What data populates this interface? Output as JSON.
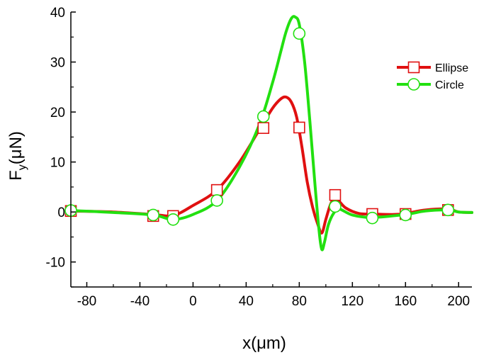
{
  "chart_data": {
    "type": "line",
    "xlabel": "x(μm)",
    "ylabel": {
      "main": "F",
      "sub": "y",
      "rest": "(μN)"
    },
    "xlim": [
      -92,
      210
    ],
    "ylim": [
      -15,
      40
    ],
    "xticks": [
      -80,
      -40,
      0,
      40,
      80,
      120,
      160,
      200
    ],
    "xtick_labels": [
      "-80",
      "-40",
      "0",
      "40",
      "80",
      "120",
      "160",
      "200"
    ],
    "yticks": [
      -10,
      0,
      10,
      20,
      30,
      40
    ],
    "ytick_labels": [
      "-10",
      "0",
      "10",
      "20",
      "30",
      "40"
    ],
    "grid": false,
    "legend_position": "top-right",
    "series": [
      {
        "name": "Ellipse",
        "color": "#e01010",
        "marker": "square",
        "x": [
          -92,
          -60,
          -30,
          -15,
          0,
          18,
          35,
          50,
          60,
          66,
          70,
          74,
          78,
          82,
          86,
          90,
          94,
          97,
          100,
          104,
          108,
          115,
          125,
          135,
          150,
          160,
          175,
          192,
          200,
          210
        ],
        "y": [
          0.2,
          0,
          -0.5,
          -0.7,
          1.3,
          4.4,
          10,
          16.5,
          20.8,
          22.6,
          23,
          22,
          19,
          13,
          6,
          1,
          -2.5,
          -4.2,
          -1.5,
          1.8,
          2.6,
          0.8,
          -0.3,
          -0.4,
          -0.5,
          -0.3,
          0.4,
          0.6,
          0,
          -0.1
        ],
        "markers_x": [
          -92,
          -30,
          -15,
          18,
          53,
          80,
          107,
          135,
          160,
          192
        ],
        "markers_y": [
          0.2,
          -0.8,
          -0.8,
          4.4,
          16.8,
          16.9,
          3.4,
          -0.4,
          -0.4,
          0.4
        ]
      },
      {
        "name": "Circle",
        "color": "#22e010",
        "marker": "circle",
        "x": [
          -92,
          -60,
          -30,
          -15,
          0,
          18,
          35,
          50,
          60,
          66,
          70,
          74,
          77,
          80,
          84,
          88,
          92,
          95,
          97,
          99,
          102,
          106,
          110,
          120,
          135,
          160,
          175,
          192,
          200,
          210
        ],
        "y": [
          0.3,
          -0.1,
          -0.6,
          -1.5,
          -0.5,
          2.3,
          9,
          17.5,
          26,
          32,
          36,
          38.7,
          39,
          37.5,
          30,
          18,
          5,
          -4,
          -7.5,
          -6,
          -2.5,
          -0.2,
          0.6,
          -0.6,
          -1.1,
          -0.5,
          0.2,
          0.4,
          0,
          -0.1
        ],
        "markers_x": [
          -92,
          -30,
          -15,
          18,
          53,
          80,
          107,
          135,
          160,
          192
        ],
        "markers_y": [
          0.3,
          -0.6,
          -1.5,
          2.3,
          19.1,
          35.7,
          1.1,
          -1.2,
          -0.6,
          0.4
        ]
      }
    ]
  }
}
